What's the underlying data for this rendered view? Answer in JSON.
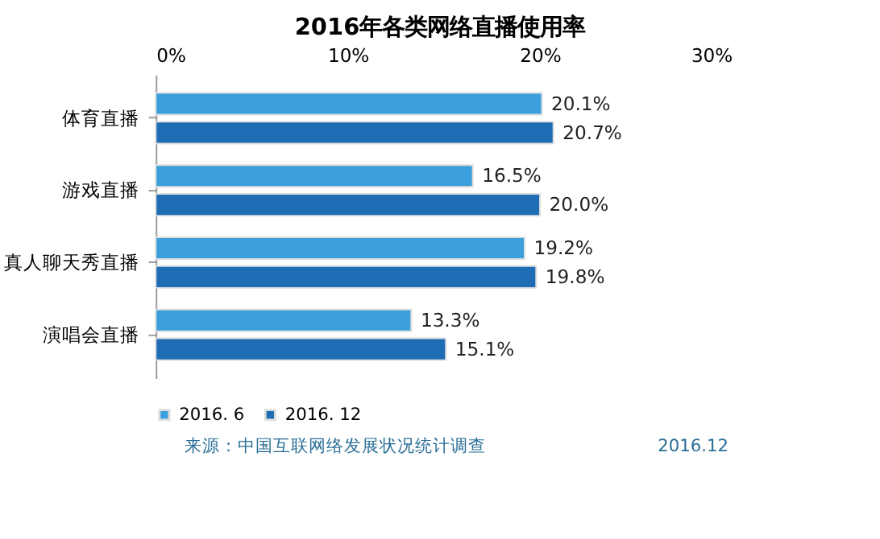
{
  "chart_data": {
    "type": "bar",
    "orientation": "horizontal",
    "title": "2016年各类网络直播使用率",
    "categories": [
      "体育直播",
      "游戏直播",
      "真人聊天秀直播",
      "演唱会直播"
    ],
    "series": [
      {
        "name": "2016. 6",
        "color": "#3a9fdc",
        "values": [
          20.1,
          16.5,
          19.2,
          13.3
        ],
        "value_labels": [
          "20.1%",
          "16.5%",
          "19.2%",
          "13.3%"
        ]
      },
      {
        "name": "2016. 12",
        "color": "#1f6db5",
        "values": [
          20.7,
          20.0,
          19.8,
          15.1
        ],
        "value_labels": [
          "20.7%",
          "20.0%",
          "19.8%",
          "15.1%"
        ]
      }
    ],
    "xlim": [
      0,
      30
    ],
    "xticks": [
      {
        "value": 0,
        "label": "0%"
      },
      {
        "value": 10,
        "label": "10%"
      },
      {
        "value": 20,
        "label": "20%"
      },
      {
        "value": 30,
        "label": "30%"
      }
    ],
    "grid": false,
    "legend": "bottom",
    "annotations": [
      "来源：中国互联网络发展状况统计调查",
      "2016.12"
    ]
  }
}
